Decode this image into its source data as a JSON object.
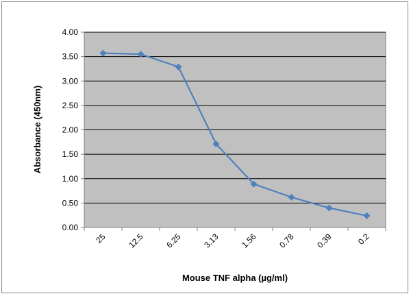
{
  "chart_data": {
    "type": "line",
    "title": "",
    "xlabel": "Mouse TNF alpha (µg/ml)",
    "ylabel": "Absorbance (450nm)",
    "categories": [
      "25",
      "12.5",
      "6.25",
      "3.13",
      "1.56",
      "0.78",
      "0.39",
      "0.2"
    ],
    "values": [
      3.57,
      3.55,
      3.29,
      1.71,
      0.89,
      0.62,
      0.4,
      0.24
    ],
    "ylim": [
      0,
      4
    ],
    "yticks": [
      "0.00",
      "0.50",
      "1.00",
      "1.50",
      "2.00",
      "2.50",
      "3.00",
      "3.50",
      "4.00"
    ],
    "grid": true,
    "legend": "none",
    "colors": {
      "series": "#4F81BD",
      "plot_background": "#C0C0C0",
      "grid": "#000000"
    }
  }
}
